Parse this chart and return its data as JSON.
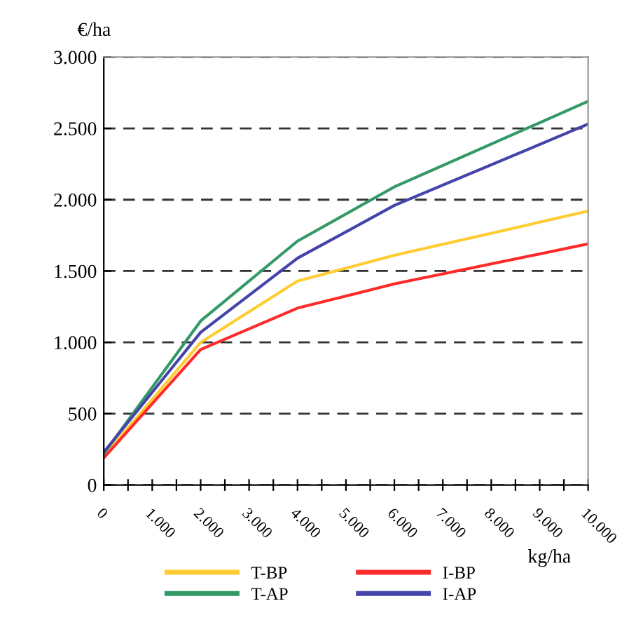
{
  "chart_data": {
    "type": "line",
    "xlabel": "kg/ha",
    "ylabel": "€/ha",
    "xlim": [
      0,
      10000
    ],
    "ylim": [
      0,
      3000
    ],
    "xticks": [
      0,
      {
        "value": 500,
        "label": null
      },
      {
        "value": 1000,
        "label": "1.000"
      },
      {
        "value": 1500,
        "label": null
      },
      {
        "value": 2000,
        "label": "2.000"
      },
      {
        "value": 2500,
        "label": null
      },
      {
        "value": 3000,
        "label": "3.000"
      },
      {
        "value": 3500,
        "label": null
      },
      {
        "value": 4000,
        "label": "4.000"
      },
      {
        "value": 4500,
        "label": null
      },
      {
        "value": 5000,
        "label": "5.000"
      },
      {
        "value": 5500,
        "label": null
      },
      {
        "value": 6000,
        "label": "6.000"
      },
      {
        "value": 6500,
        "label": null
      },
      {
        "value": 7000,
        "label": "7.000"
      },
      {
        "value": 7500,
        "label": null
      },
      {
        "value": 8000,
        "label": "8.000"
      },
      {
        "value": 8500,
        "label": null
      },
      {
        "value": 9000,
        "label": "9.000"
      },
      {
        "value": 9500,
        "label": null
      },
      {
        "value": 10000,
        "label": "10.000"
      }
    ],
    "yticks": [
      0,
      500,
      {
        "value": 1000,
        "label": "1.000"
      },
      {
        "value": 1500,
        "label": "1.500"
      },
      {
        "value": 2000,
        "label": "2.000"
      },
      {
        "value": 2500,
        "label": "2.500"
      },
      {
        "value": 3000,
        "label": "3.000"
      }
    ],
    "x": [
      0,
      2000,
      4000,
      6000,
      10000
    ],
    "series": [
      {
        "name": "T-BP",
        "color": "#ffcc33",
        "values": [
          200,
          1000,
          1430,
          1610,
          1920
        ]
      },
      {
        "name": "I-BP",
        "color": "#ff2a2a",
        "values": [
          190,
          950,
          1240,
          1410,
          1690
        ]
      },
      {
        "name": "T-AP",
        "color": "#339966",
        "values": [
          220,
          1150,
          1710,
          2090,
          2690
        ]
      },
      {
        "name": "I-AP",
        "color": "#4444aa",
        "values": [
          230,
          1070,
          1590,
          1960,
          2530
        ]
      }
    ],
    "grid": "y",
    "legend": "bottom",
    "marker": "none",
    "line_style": "solid"
  }
}
